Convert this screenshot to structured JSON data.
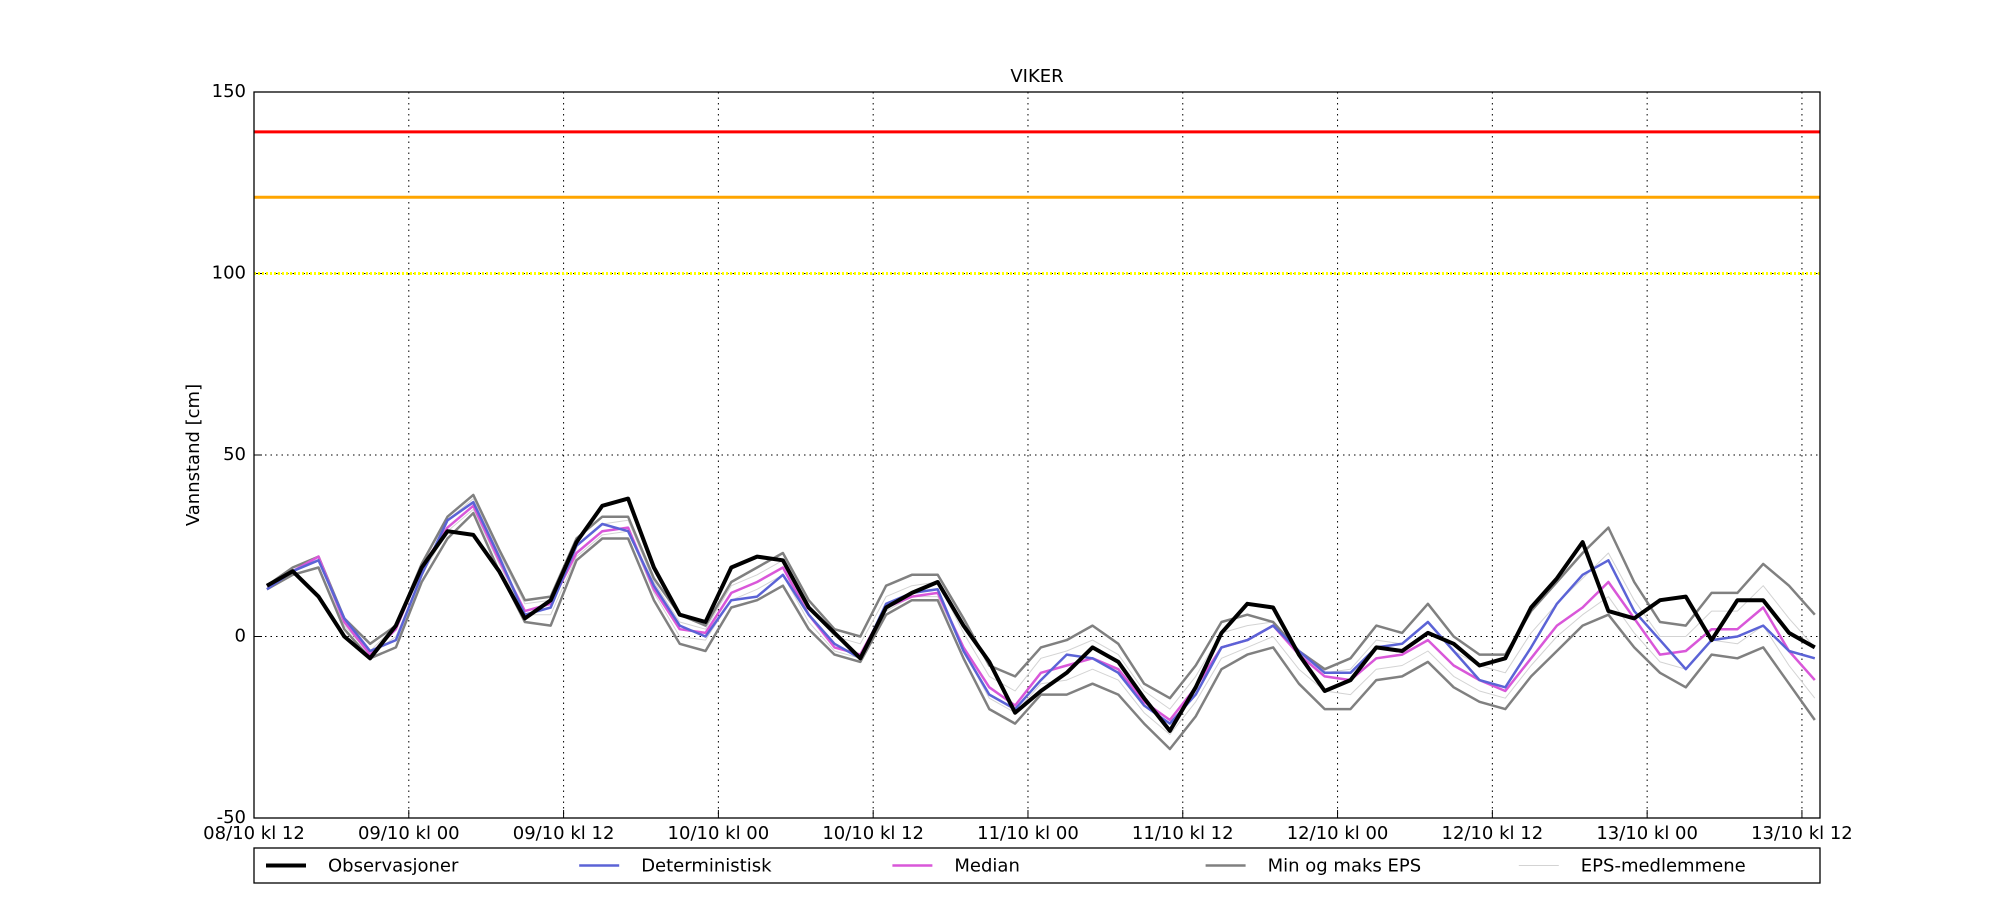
{
  "chart_data": {
    "type": "line",
    "title": "VIKER",
    "y_label": "Vannstand [cm]",
    "xlim": [
      0,
      121.4
    ],
    "ylim": [
      -50,
      150
    ],
    "yticks": [
      -50,
      0,
      50,
      100,
      150
    ],
    "xticks": [
      {
        "value": 0,
        "label": "08/10 kl 12"
      },
      {
        "value": 12,
        "label": "09/10 kl 00"
      },
      {
        "value": 24,
        "label": "09/10 kl 12"
      },
      {
        "value": 36,
        "label": "10/10 kl 00"
      },
      {
        "value": 48,
        "label": "10/10 kl 12"
      },
      {
        "value": 60,
        "label": "11/10 kl 00"
      },
      {
        "value": 72,
        "label": "11/10 kl 12"
      },
      {
        "value": 84,
        "label": "12/10 kl 00"
      },
      {
        "value": 96,
        "label": "12/10 kl 12"
      },
      {
        "value": 108,
        "label": "13/10 kl 00"
      },
      {
        "value": 120,
        "label": "13/10 kl 12"
      }
    ],
    "grid": true,
    "hlines": [
      {
        "value": 139,
        "color": "#ff0000"
      },
      {
        "value": 121,
        "color": "#ffa500"
      },
      {
        "value": 100,
        "color": "#ffff00",
        "style": "dotted"
      }
    ],
    "x": [
      1,
      3,
      5,
      7,
      9,
      11,
      13,
      15,
      17,
      19,
      21,
      23,
      25,
      27,
      29,
      31,
      33,
      35,
      37,
      39,
      41,
      43,
      45,
      47,
      49,
      51,
      53,
      55,
      57,
      59,
      61,
      63,
      65,
      67,
      69,
      71,
      73,
      75,
      77,
      79,
      81,
      83,
      85,
      87,
      89,
      91,
      93,
      95,
      97,
      99,
      101,
      103,
      105,
      107,
      109,
      111,
      113,
      115,
      117,
      119,
      121
    ],
    "series": [
      {
        "name": "Observasjoner",
        "color": "#000000",
        "linewidth": 4,
        "values": [
          14,
          18,
          11,
          0,
          -6,
          3,
          19,
          29,
          28,
          18,
          5,
          10,
          26,
          36,
          38,
          19,
          6,
          4,
          19,
          22,
          21,
          8,
          1,
          -6,
          8,
          12,
          15,
          3,
          -7,
          -21,
          -15,
          -10,
          -3,
          -7,
          -17,
          -26,
          -14,
          1,
          9,
          8,
          -5,
          -15,
          -12,
          -3,
          -4,
          1,
          -2,
          -8,
          -6,
          8,
          16,
          26,
          7,
          5,
          10,
          11,
          -1,
          10,
          10,
          1,
          -3
        ]
      },
      {
        "name": "Deterministisk",
        "color": "#5b63d6",
        "linewidth": 2.5,
        "values": [
          13,
          18,
          21,
          5,
          -4,
          -1,
          17,
          32,
          37,
          22,
          6,
          8,
          25,
          31,
          29,
          14,
          3,
          0,
          10,
          11,
          17,
          6,
          -2,
          -6,
          9,
          12,
          13,
          -4,
          -16,
          -20,
          -12,
          -5,
          -6,
          -10,
          -19,
          -24,
          -16,
          -3,
          -1,
          3,
          -4,
          -10,
          -10,
          -3,
          -2,
          4,
          -4,
          -12,
          -14,
          -3,
          9,
          17,
          21,
          7,
          -1,
          -9,
          -1,
          0,
          3,
          -4,
          -6
        ]
      },
      {
        "name": "Median",
        "color": "#d957d9",
        "linewidth": 2.5,
        "values": [
          14,
          18,
          22,
          4,
          -5,
          2,
          19,
          30,
          36,
          21,
          7,
          9,
          23,
          29,
          30,
          13,
          2,
          1,
          12,
          15,
          19,
          6,
          -3,
          -5,
          8,
          11,
          12,
          -3,
          -14,
          -19,
          -10,
          -8,
          -6,
          -9,
          -18,
          -23,
          -14,
          -3,
          -1,
          3,
          -5,
          -11,
          -12,
          -6,
          -5,
          -1,
          -8,
          -12,
          -15,
          -6,
          3,
          8,
          15,
          5,
          -5,
          -4,
          2,
          2,
          8,
          -4,
          -12
        ]
      },
      {
        "name": "Min og maks EPS",
        "color": "#808080",
        "linewidth": 2.5,
        "max": [
          14,
          19,
          22,
          5,
          -2,
          3,
          20,
          33,
          39,
          24,
          10,
          11,
          27,
          33,
          33,
          16,
          6,
          3,
          15,
          19,
          23,
          10,
          2,
          0,
          14,
          17,
          17,
          5,
          -8,
          -11,
          -3,
          -1,
          3,
          -2,
          -13,
          -17,
          -8,
          4,
          6,
          4,
          -4,
          -9,
          -6,
          3,
          1,
          9,
          0,
          -5,
          -5,
          7,
          15,
          23,
          30,
          15,
          4,
          3,
          12,
          12,
          20,
          14,
          6
        ],
        "min": [
          13,
          17,
          19,
          2,
          -6,
          -3,
          15,
          27,
          34,
          18,
          4,
          3,
          21,
          27,
          27,
          10,
          -2,
          -4,
          8,
          10,
          14,
          2,
          -5,
          -7,
          6,
          10,
          10,
          -6,
          -20,
          -24,
          -16,
          -16,
          -13,
          -16,
          -24,
          -31,
          -22,
          -9,
          -5,
          -3,
          -13,
          -20,
          -20,
          -12,
          -11,
          -7,
          -14,
          -18,
          -20,
          -11,
          -4,
          3,
          6,
          -3,
          -10,
          -14,
          -5,
          -6,
          -3,
          -13,
          -23
        ]
      },
      {
        "name": "EPS-medlemmene",
        "color": "#d3d3d3",
        "linewidth": 1,
        "members": [
          [
            14,
            19,
            22,
            5,
            -4,
            3,
            20,
            32,
            38,
            23,
            9,
            10,
            25,
            31,
            32,
            15,
            4,
            2,
            14,
            17,
            21,
            8,
            0,
            -2,
            11,
            14,
            15,
            1,
            -11,
            -15,
            -6,
            -4,
            -1,
            -5,
            -15,
            -20,
            -11,
            1,
            3,
            4,
            -4,
            -10,
            -9,
            -1,
            -2,
            4,
            -4,
            -8,
            -10,
            1,
            9,
            16,
            23,
            10,
            0,
            0,
            7,
            7,
            14,
            5,
            -3
          ],
          [
            14,
            18,
            21,
            3,
            -5,
            0,
            17,
            29,
            35,
            20,
            6,
            6,
            22,
            28,
            29,
            12,
            0,
            -1,
            10,
            13,
            17,
            4,
            -4,
            -6,
            7,
            11,
            11,
            -4,
            -17,
            -21,
            -13,
            -12,
            -9,
            -12,
            -21,
            -27,
            -18,
            -6,
            -3,
            0,
            -9,
            -15,
            -16,
            -9,
            -8,
            -4,
            -11,
            -15,
            -17,
            -8,
            0,
            6,
            11,
            1,
            -7,
            -9,
            -1,
            -2,
            3,
            -8,
            -17
          ]
        ]
      }
    ]
  }
}
